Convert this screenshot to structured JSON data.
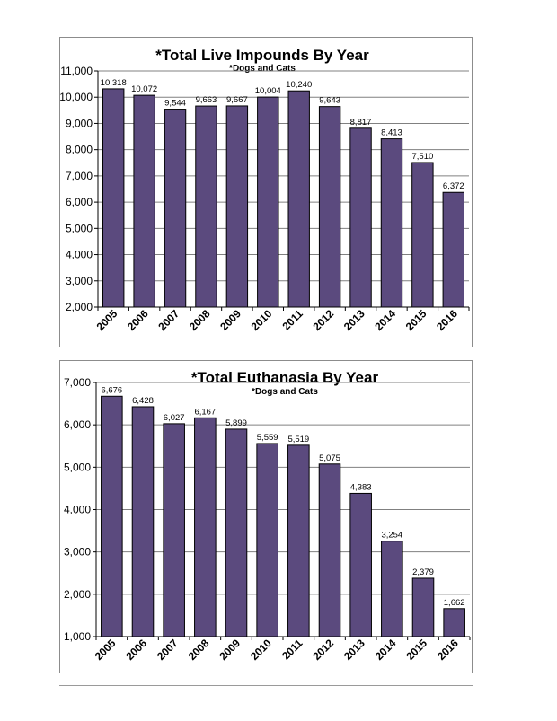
{
  "colors": {
    "bar": "#5b4a7e",
    "bar_stroke": "#000000",
    "grid": "#808080"
  },
  "chart_data": [
    {
      "type": "bar",
      "title": "*Total Live Impounds By Year",
      "subtitle": "*Dogs and Cats",
      "categories": [
        "2005",
        "2006",
        "2007",
        "2008",
        "2009",
        "2010",
        "2011",
        "2012",
        "2013",
        "2014",
        "2015",
        "2016"
      ],
      "values": [
        10318,
        10072,
        9544,
        9663,
        9667,
        10004,
        10240,
        9643,
        8817,
        8413,
        7510,
        6372
      ],
      "value_labels": [
        "10,318",
        "10,072",
        "9,544",
        "9,663",
        "9,667",
        "10,004",
        "10,240",
        "9,643",
        "8,817",
        "8,413",
        "7,510",
        "6,372"
      ],
      "ylim": [
        2000,
        11000
      ],
      "yticks": [
        2000,
        3000,
        4000,
        5000,
        6000,
        7000,
        8000,
        9000,
        10000,
        11000
      ],
      "ytick_labels": [
        "2,000",
        "3,000",
        "4,000",
        "5,000",
        "6,000",
        "7,000",
        "8,000",
        "9,000",
        "10,000",
        "11,000"
      ],
      "grid": true
    },
    {
      "type": "bar",
      "title": "*Total Euthanasia By Year",
      "subtitle": "*Dogs and Cats",
      "categories": [
        "2005",
        "2006",
        "2007",
        "2008",
        "2009",
        "2010",
        "2011",
        "2012",
        "2013",
        "2014",
        "2015",
        "2016"
      ],
      "values": [
        6676,
        6428,
        6027,
        6167,
        5899,
        5559,
        5519,
        5075,
        4383,
        3254,
        2379,
        1662
      ],
      "value_labels": [
        "6,676",
        "6,428",
        "6,027",
        "6,167",
        "5,899",
        "5,559",
        "5,519",
        "5,075",
        "4,383",
        "3,254",
        "2,379",
        "1,662"
      ],
      "ylim": [
        1000,
        7000
      ],
      "yticks": [
        1000,
        2000,
        3000,
        4000,
        5000,
        6000,
        7000
      ],
      "ytick_labels": [
        "1,000",
        "2,000",
        "3,000",
        "4,000",
        "5,000",
        "6,000",
        "7,000"
      ],
      "grid": true
    }
  ]
}
